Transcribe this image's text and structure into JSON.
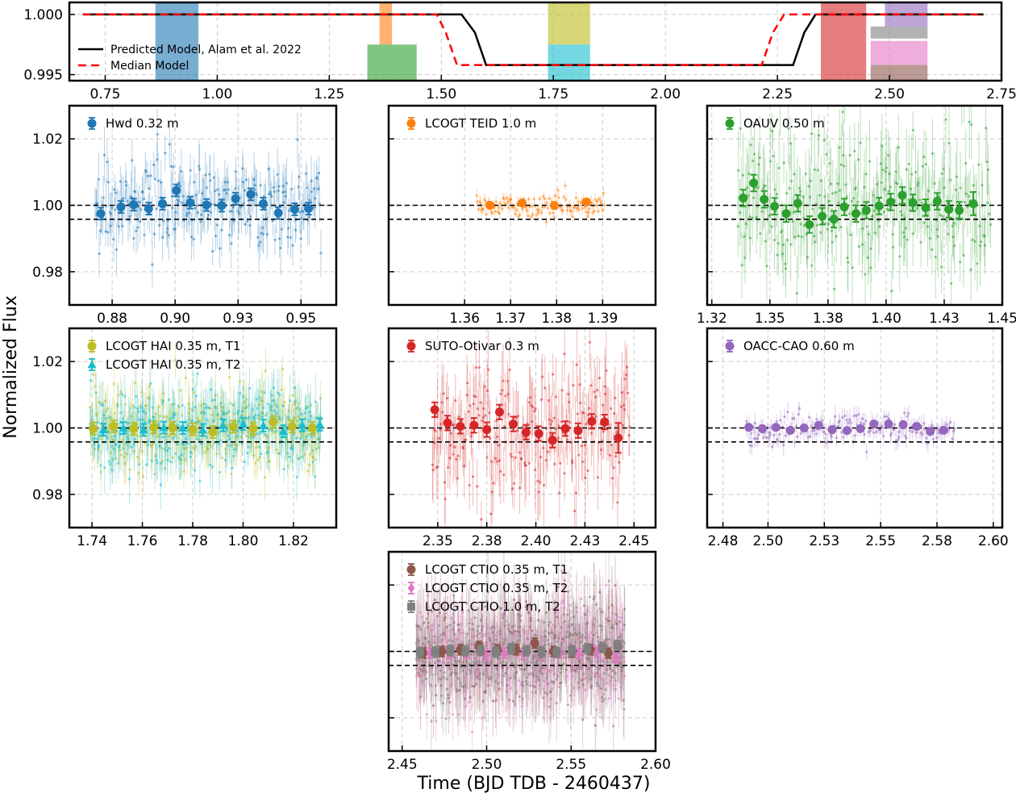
{
  "figure": {
    "ylabel": "Normalized Flux",
    "xlabel": "Time (BJD TDB - 2460437)"
  },
  "chart_data": [
    {
      "id": "overview",
      "type": "line",
      "xlim": [
        0.67,
        2.75
      ],
      "ylim": [
        0.9945,
        1.001
      ],
      "xticks": [
        0.75,
        1.0,
        1.25,
        1.5,
        1.75,
        2.0,
        2.25,
        2.5,
        2.75
      ],
      "xtick_labels": [
        "0.75",
        "1.00",
        "1.25",
        "1.50",
        "1.75",
        "2.00",
        "2.25",
        "2.50",
        "2.75"
      ],
      "yticks": [
        0.995,
        1.0
      ],
      "ytick_labels": [
        "0.995",
        "1.000"
      ],
      "legend": [
        "Predicted Model, Alam et al. 2022",
        "Median Model"
      ],
      "predicted_model": {
        "x": [
          0.7,
          1.545,
          1.575,
          1.6,
          2.285,
          2.31,
          2.335,
          2.71
        ],
        "y": [
          1.0,
          1.0,
          0.9985,
          0.9958,
          0.9958,
          0.9985,
          1.0,
          1.0
        ],
        "color": "#000000"
      },
      "median_model": {
        "x": [
          0.7,
          1.49,
          1.51,
          1.535,
          2.215,
          2.24,
          2.265,
          2.71
        ],
        "y": [
          1.0,
          1.0,
          0.9985,
          0.9958,
          0.9958,
          0.9985,
          1.0,
          1.0
        ],
        "color": "#ff0000"
      },
      "coverage_bands": [
        {
          "name": "Hwd 0.32 m",
          "x0": 0.862,
          "x1": 0.958,
          "color": "#1f77b4",
          "y0": 0.9945,
          "y1": 1.001
        },
        {
          "name": "LCOGT TEID 1.0 m",
          "x0": 1.362,
          "x1": 1.39,
          "color": "#ff7f0e",
          "y0": 0.9975,
          "y1": 1.001
        },
        {
          "name": "OAUV 0.50 m",
          "x0": 1.335,
          "x1": 1.445,
          "color": "#2ca02c",
          "y0": 0.9945,
          "y1": 0.9975
        },
        {
          "name": "LCOGT HAI 0.35 m, T1",
          "x0": 1.738,
          "x1": 1.832,
          "color": "#bcbd22",
          "y0": 0.9975,
          "y1": 1.001
        },
        {
          "name": "LCOGT HAI 0.35 m, T2",
          "x0": 1.738,
          "x1": 1.832,
          "color": "#17becf",
          "y0": 0.9945,
          "y1": 0.9975
        },
        {
          "name": "SUTO-Otivar 0.3 m",
          "x0": 2.347,
          "x1": 2.448,
          "color": "#d62728",
          "y0": 0.9945,
          "y1": 1.001
        },
        {
          "name": "OACC-CAO 0.60 m",
          "x0": 2.49,
          "x1": 2.585,
          "color": "#9467bd",
          "y0": 0.999,
          "y1": 1.001
        },
        {
          "name": "LCOGT CTIO 1.0 m, T2",
          "x0": 2.458,
          "x1": 2.585,
          "color": "#7f7f7f",
          "y0": 0.998,
          "y1": 0.999
        },
        {
          "name": "LCOGT CTIO 0.35 m, T2",
          "x0": 2.458,
          "x1": 2.585,
          "color": "#e377c2",
          "y0": 0.9958,
          "y1": 0.9978
        },
        {
          "name": "LCOGT CTIO 0.35 m, T1",
          "x0": 2.458,
          "x1": 2.585,
          "color": "#8c564b",
          "y0": 0.9945,
          "y1": 0.9958
        }
      ]
    },
    {
      "id": "hwd",
      "type": "scatter",
      "xlim": [
        0.858,
        0.964
      ],
      "ylim": [
        0.97,
        1.03
      ],
      "xticks": [
        0.875,
        0.9,
        0.925,
        0.95
      ],
      "xtick_labels": [
        "0.88",
        "0.90",
        "0.93",
        "0.95"
      ],
      "yticks": [
        0.98,
        1.0,
        1.02
      ],
      "ytick_labels": [
        "0.98",
        "1.00",
        "1.02"
      ],
      "show_yticklabels": true,
      "ref_lines": [
        1.0,
        0.9958
      ],
      "series": [
        {
          "name": "Hwd 0.32 m",
          "marker": "circle",
          "color": "#1f77b4",
          "raw_range": [
            0.868,
            0.958
          ],
          "raw_n": 260,
          "raw_sd": 0.0065,
          "raw_err": 0.006,
          "binned_x": [
            0.8705,
            0.8785,
            0.8835,
            0.8895,
            0.895,
            0.9005,
            0.906,
            0.9125,
            0.9185,
            0.924,
            0.93,
            0.935,
            0.941,
            0.9475,
            0.953
          ],
          "binned_y": [
            0.9975,
            0.9995,
            1.0002,
            0.999,
            1.0005,
            1.0045,
            1.0008,
            1.0001,
            0.9999,
            1.002,
            1.0033,
            1.0005,
            0.9977,
            0.9988,
            0.999
          ],
          "binned_err": [
            0.0018,
            0.0018,
            0.0018,
            0.0018,
            0.0018,
            0.0018,
            0.0018,
            0.0018,
            0.0018,
            0.0018,
            0.0018,
            0.0018,
            0.0018,
            0.0018,
            0.0018
          ]
        }
      ]
    },
    {
      "id": "teid",
      "type": "scatter",
      "xlim": [
        1.3435,
        1.4015
      ],
      "ylim": [
        0.97,
        1.03
      ],
      "xticks": [
        1.36,
        1.37,
        1.38,
        1.39
      ],
      "xtick_labels": [
        "1.36",
        "1.37",
        "1.38",
        "1.39"
      ],
      "yticks": [
        0.98,
        1.0,
        1.02
      ],
      "ytick_labels": [
        "0.98",
        "1.00",
        "1.02"
      ],
      "show_yticklabels": false,
      "ref_lines": [
        1.0,
        0.9958
      ],
      "series": [
        {
          "name": "LCOGT TEID 1.0 m",
          "marker": "circle",
          "color": "#ff7f0e",
          "raw_range": [
            1.3625,
            1.3905
          ],
          "raw_n": 130,
          "raw_sd": 0.0018,
          "raw_err": 0.0015,
          "binned_x": [
            1.3655,
            1.3725,
            1.3795,
            1.3865
          ],
          "binned_y": [
            1.0,
            1.0007,
            0.9999,
            1.001
          ],
          "binned_err": [
            0.0007,
            0.0007,
            0.0007,
            0.0007
          ]
        }
      ]
    },
    {
      "id": "oauv",
      "type": "scatter",
      "xlim": [
        1.323,
        1.45
      ],
      "ylim": [
        0.97,
        1.03
      ],
      "xticks": [
        1.325,
        1.35,
        1.375,
        1.4,
        1.425,
        1.45
      ],
      "xtick_labels": [
        "1.32",
        "1.35",
        "1.38",
        "1.40",
        "1.43",
        "1.45"
      ],
      "yticks": [
        0.98,
        1.0,
        1.02
      ],
      "ytick_labels": [
        "0.98",
        "1.00",
        "1.02"
      ],
      "show_yticklabels": false,
      "ref_lines": [
        1.0,
        0.9958
      ],
      "series": [
        {
          "name": "OAUV 0.50 m",
          "marker": "circle",
          "color": "#2ca02c",
          "raw_range": [
            1.336,
            1.445
          ],
          "raw_n": 300,
          "raw_sd": 0.011,
          "raw_err": 0.009,
          "binned_x": [
            1.3385,
            1.343,
            1.3475,
            1.352,
            1.357,
            1.362,
            1.367,
            1.3725,
            1.3775,
            1.382,
            1.387,
            1.3915,
            1.397,
            1.402,
            1.407,
            1.4115,
            1.417,
            1.422,
            1.427,
            1.4315,
            1.4375
          ],
          "binned_y": [
            1.0022,
            1.0067,
            1.0018,
            0.9997,
            0.9975,
            1.0006,
            0.9942,
            0.9967,
            0.9958,
            0.9995,
            0.9975,
            0.9985,
            0.9998,
            1.001,
            1.003,
            1.0008,
            0.9993,
            1.0012,
            0.9988,
            0.9985,
            1.0005
          ],
          "binned_err": [
            0.0025,
            0.0025,
            0.0025,
            0.0025,
            0.0025,
            0.0025,
            0.0025,
            0.0025,
            0.0025,
            0.0025,
            0.0025,
            0.0025,
            0.0025,
            0.0025,
            0.0025,
            0.0025,
            0.0025,
            0.0025,
            0.0025,
            0.0025,
            0.0035
          ]
        }
      ]
    },
    {
      "id": "hai",
      "type": "scatter",
      "xlim": [
        1.731,
        1.837
      ],
      "ylim": [
        0.97,
        1.03
      ],
      "xticks": [
        1.74,
        1.76,
        1.78,
        1.8,
        1.82
      ],
      "xtick_labels": [
        "1.74",
        "1.76",
        "1.78",
        "1.80",
        "1.82"
      ],
      "yticks": [
        0.98,
        1.0,
        1.02
      ],
      "ytick_labels": [
        "0.98",
        "1.00",
        "1.02"
      ],
      "show_yticklabels": true,
      "ref_lines": [
        1.0,
        0.9958
      ],
      "series": [
        {
          "name": "LCOGT HAI 0.35 m, T1",
          "marker": "circle",
          "color": "#bcbd22",
          "raw_range": [
            1.739,
            1.831
          ],
          "raw_n": 330,
          "raw_sd": 0.0062,
          "raw_err": 0.006,
          "binned_x": [
            1.7405,
            1.7485,
            1.7565,
            1.7645,
            1.772,
            1.78,
            1.788,
            1.796,
            1.804,
            1.812,
            1.8195,
            1.8275
          ],
          "binned_y": [
            0.9998,
            1.0005,
            0.9998,
            1.0002,
            1.0,
            0.9996,
            0.9988,
            1.0004,
            0.9998,
            1.0018,
            1.0004,
            1.0
          ],
          "binned_err": [
            0.0018,
            0.0018,
            0.0018,
            0.0018,
            0.0018,
            0.0018,
            0.0018,
            0.0018,
            0.0018,
            0.0018,
            0.0018,
            0.0018
          ]
        },
        {
          "name": "LCOGT HAI 0.35 m, T2",
          "marker": "triangle",
          "color": "#17becf",
          "raw_range": [
            1.739,
            1.831
          ],
          "raw_n": 330,
          "raw_sd": 0.0062,
          "raw_err": 0.006,
          "binned_x": [
            1.7445,
            1.7525,
            1.7605,
            1.7685,
            1.776,
            1.784,
            1.792,
            1.8,
            1.808,
            1.816,
            1.8235,
            1.8305
          ],
          "binned_y": [
            0.9995,
            1.0,
            0.9994,
            1.0001,
            1.0,
            0.9994,
            1.0008,
            1.0012,
            1.0007,
            0.999,
            1.0008,
            1.001
          ],
          "binned_err": [
            0.0018,
            0.0018,
            0.0018,
            0.0018,
            0.0018,
            0.0018,
            0.0018,
            0.0018,
            0.0018,
            0.0018,
            0.0018,
            0.0018
          ]
        }
      ]
    },
    {
      "id": "suto",
      "type": "scatter",
      "xlim": [
        2.325,
        2.461
      ],
      "ylim": [
        0.97,
        1.03
      ],
      "xticks": [
        2.35,
        2.375,
        2.4,
        2.425,
        2.45
      ],
      "xtick_labels": [
        "2.35",
        "2.38",
        "2.40",
        "2.43",
        "2.45"
      ],
      "yticks": [
        0.98,
        1.0,
        1.02
      ],
      "ytick_labels": [
        "0.98",
        "1.00",
        "1.02"
      ],
      "show_yticklabels": false,
      "ref_lines": [
        1.0,
        0.9958
      ],
      "series": [
        {
          "name": "SUTO-Otivar 0.3 m",
          "marker": "circle",
          "color": "#d62728",
          "raw_range": [
            2.347,
            2.448
          ],
          "raw_n": 230,
          "raw_sd": 0.0095,
          "raw_err": 0.009,
          "binned_x": [
            2.3485,
            2.355,
            2.3615,
            2.3685,
            2.375,
            2.3815,
            2.3885,
            2.395,
            2.4015,
            2.4085,
            2.415,
            2.4215,
            2.4285,
            2.435,
            2.442
          ],
          "binned_y": [
            1.0055,
            1.0015,
            1.0005,
            1.0008,
            0.9995,
            1.0048,
            1.0012,
            0.9987,
            0.9983,
            0.9963,
            0.9998,
            0.9992,
            1.002,
            1.0018,
            0.997
          ],
          "binned_err": [
            0.0022,
            0.0022,
            0.0022,
            0.0022,
            0.0022,
            0.0022,
            0.0022,
            0.0022,
            0.0022,
            0.0022,
            0.0022,
            0.0022,
            0.0022,
            0.0022,
            0.0045
          ]
        }
      ]
    },
    {
      "id": "oacc",
      "type": "scatter",
      "xlim": [
        2.473,
        2.604
      ],
      "ylim": [
        0.97,
        1.03
      ],
      "xticks": [
        2.48,
        2.5,
        2.525,
        2.55,
        2.575,
        2.6
      ],
      "xtick_labels": [
        "2.48",
        "2.50",
        "2.53",
        "2.55",
        "2.58",
        "2.60"
      ],
      "yticks": [
        0.98,
        1.0,
        1.02
      ],
      "ytick_labels": [
        "0.98",
        "1.00",
        "1.02"
      ],
      "show_yticklabels": false,
      "ref_lines": [
        1.0,
        0.9958
      ],
      "series": [
        {
          "name": "OACC-CAO 0.60 m",
          "marker": "circle",
          "color": "#9467bd",
          "raw_range": [
            2.49,
            2.583
          ],
          "raw_n": 180,
          "raw_sd": 0.0022,
          "raw_err": 0.0025,
          "binned_x": [
            2.4915,
            2.4975,
            2.5035,
            2.51,
            2.516,
            2.5225,
            2.5285,
            2.535,
            2.541,
            2.547,
            2.5535,
            2.56,
            2.566,
            2.572,
            2.578
          ],
          "binned_y": [
            1.0002,
            0.9998,
            1.0002,
            0.9993,
            1.0,
            1.0008,
            0.9995,
            0.9992,
            0.9998,
            1.0012,
            1.0012,
            1.001,
            1.0005,
            0.999,
            0.9993
          ],
          "binned_err": [
            0.0006,
            0.0006,
            0.0006,
            0.0006,
            0.0006,
            0.0006,
            0.0006,
            0.0006,
            0.0006,
            0.0006,
            0.0006,
            0.0006,
            0.0006,
            0.0006,
            0.0006
          ]
        }
      ]
    },
    {
      "id": "ctio",
      "type": "scatter",
      "xlim": [
        2.442,
        2.6
      ],
      "ylim": [
        0.97,
        1.03
      ],
      "xticks": [
        2.45,
        2.5,
        2.55,
        2.6
      ],
      "xtick_labels": [
        "2.45",
        "2.50",
        "2.55",
        "2.60"
      ],
      "yticks": [
        0.98,
        1.0,
        1.02
      ],
      "ytick_labels": [
        "0.98",
        "1.00",
        "1.02"
      ],
      "show_yticklabels": false,
      "ref_lines": [
        1.0,
        0.9958
      ],
      "series": [
        {
          "name": "LCOGT CTIO 0.35 m, T1",
          "marker": "circle",
          "color": "#8c564b",
          "raw_range": [
            2.458,
            2.582
          ],
          "raw_n": 300,
          "raw_sd": 0.008,
          "raw_err": 0.0085,
          "binned_x": [
            2.4625,
            2.4735,
            2.4845,
            2.4955,
            2.5065,
            2.5175,
            2.5285,
            2.5395,
            2.5505,
            2.5615,
            2.572
          ],
          "binned_y": [
            0.9995,
            1.0,
            1.0005,
            1.0015,
            1.0005,
            1.0005,
            1.0025,
            1.0,
            0.9998,
            1.0005,
            0.9995
          ],
          "binned_err": [
            0.0015,
            0.0015,
            0.0015,
            0.0015,
            0.0015,
            0.0015,
            0.0015,
            0.0015,
            0.0015,
            0.0015,
            0.0015
          ]
        },
        {
          "name": "LCOGT CTIO 0.35 m, T2",
          "marker": "diamond",
          "color": "#e377c2",
          "raw_range": [
            2.458,
            2.582
          ],
          "raw_n": 300,
          "raw_sd": 0.008,
          "raw_err": 0.0085,
          "binned_x": [
            2.4665,
            2.4775,
            2.4885,
            2.4995,
            2.5105,
            2.5215,
            2.5325,
            2.5435,
            2.5545,
            2.5655,
            2.5765
          ],
          "binned_y": [
            0.9995,
            0.9993,
            0.9995,
            0.9988,
            0.9995,
            0.9992,
            0.9998,
            0.9995,
            0.9993,
            0.9998,
            0.998
          ],
          "binned_err": [
            0.0015,
            0.0015,
            0.0015,
            0.0015,
            0.0015,
            0.0015,
            0.0015,
            0.0015,
            0.0015,
            0.0015,
            0.0015
          ]
        },
        {
          "name": "LCOGT CTIO 1.0 m, T2",
          "marker": "square",
          "color": "#7f7f7f",
          "raw_range": [
            2.458,
            2.582
          ],
          "raw_n": 300,
          "raw_sd": 0.008,
          "raw_err": 0.0085,
          "binned_x": [
            2.4605,
            2.4695,
            2.4785,
            2.4875,
            2.4965,
            2.5055,
            2.5145,
            2.5235,
            2.5325,
            2.5415,
            2.5505,
            2.5595,
            2.5685,
            2.5775
          ],
          "binned_y": [
            0.9997,
            0.9998,
            1.0003,
            1.0002,
            1.0003,
            0.9998,
            1.0008,
            1.0002,
            0.9998,
            0.9997,
            1.0002,
            1.0008,
            1.0012,
            1.0018
          ],
          "binned_err": [
            0.0015,
            0.0015,
            0.0015,
            0.0015,
            0.0015,
            0.0015,
            0.0015,
            0.0015,
            0.0015,
            0.0015,
            0.0015,
            0.0015,
            0.0015,
            0.0015
          ]
        }
      ]
    }
  ]
}
